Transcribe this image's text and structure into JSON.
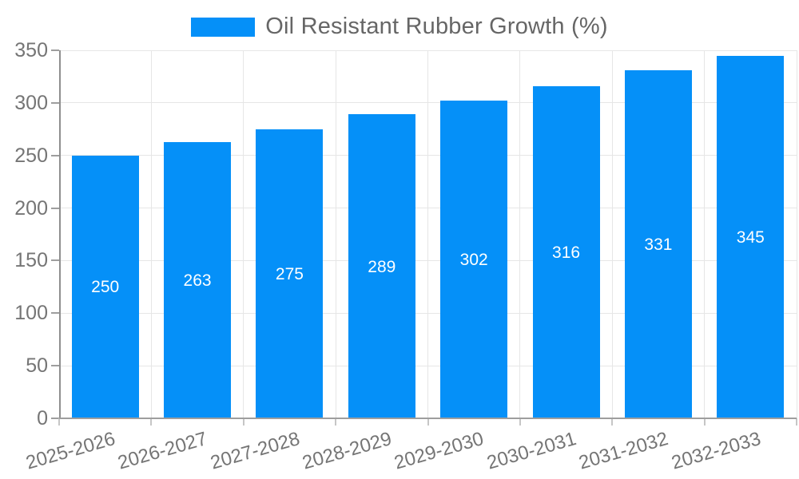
{
  "chart_data": {
    "type": "bar",
    "title": "Oil Resistant Rubber Growth (%)",
    "categories": [
      "2025-2026",
      "2026-2027",
      "2027-2028",
      "2028-2029",
      "2029-2030",
      "2030-2031",
      "2031-2032",
      "2032-2033"
    ],
    "values": [
      250,
      263,
      275,
      289,
      302,
      316,
      331,
      345
    ],
    "value_labels": [
      "250",
      "263",
      "275",
      "289",
      "302",
      "316",
      "331",
      "345"
    ],
    "ytick_labels": [
      "0",
      "50",
      "100",
      "150",
      "200",
      "250",
      "300",
      "350"
    ],
    "ylim": [
      0,
      350
    ],
    "ytick_step": 50,
    "grid": true,
    "legend_position": "top",
    "xlabel": "",
    "ylabel": "",
    "colors": {
      "bar": "#0590f8",
      "grid": "#e6e6e6",
      "axis": "#8f8f8f",
      "tick": "#c6c6c6",
      "axis_text": "#757575",
      "legend_text": "#666666",
      "value_text": "#ffffff"
    }
  }
}
